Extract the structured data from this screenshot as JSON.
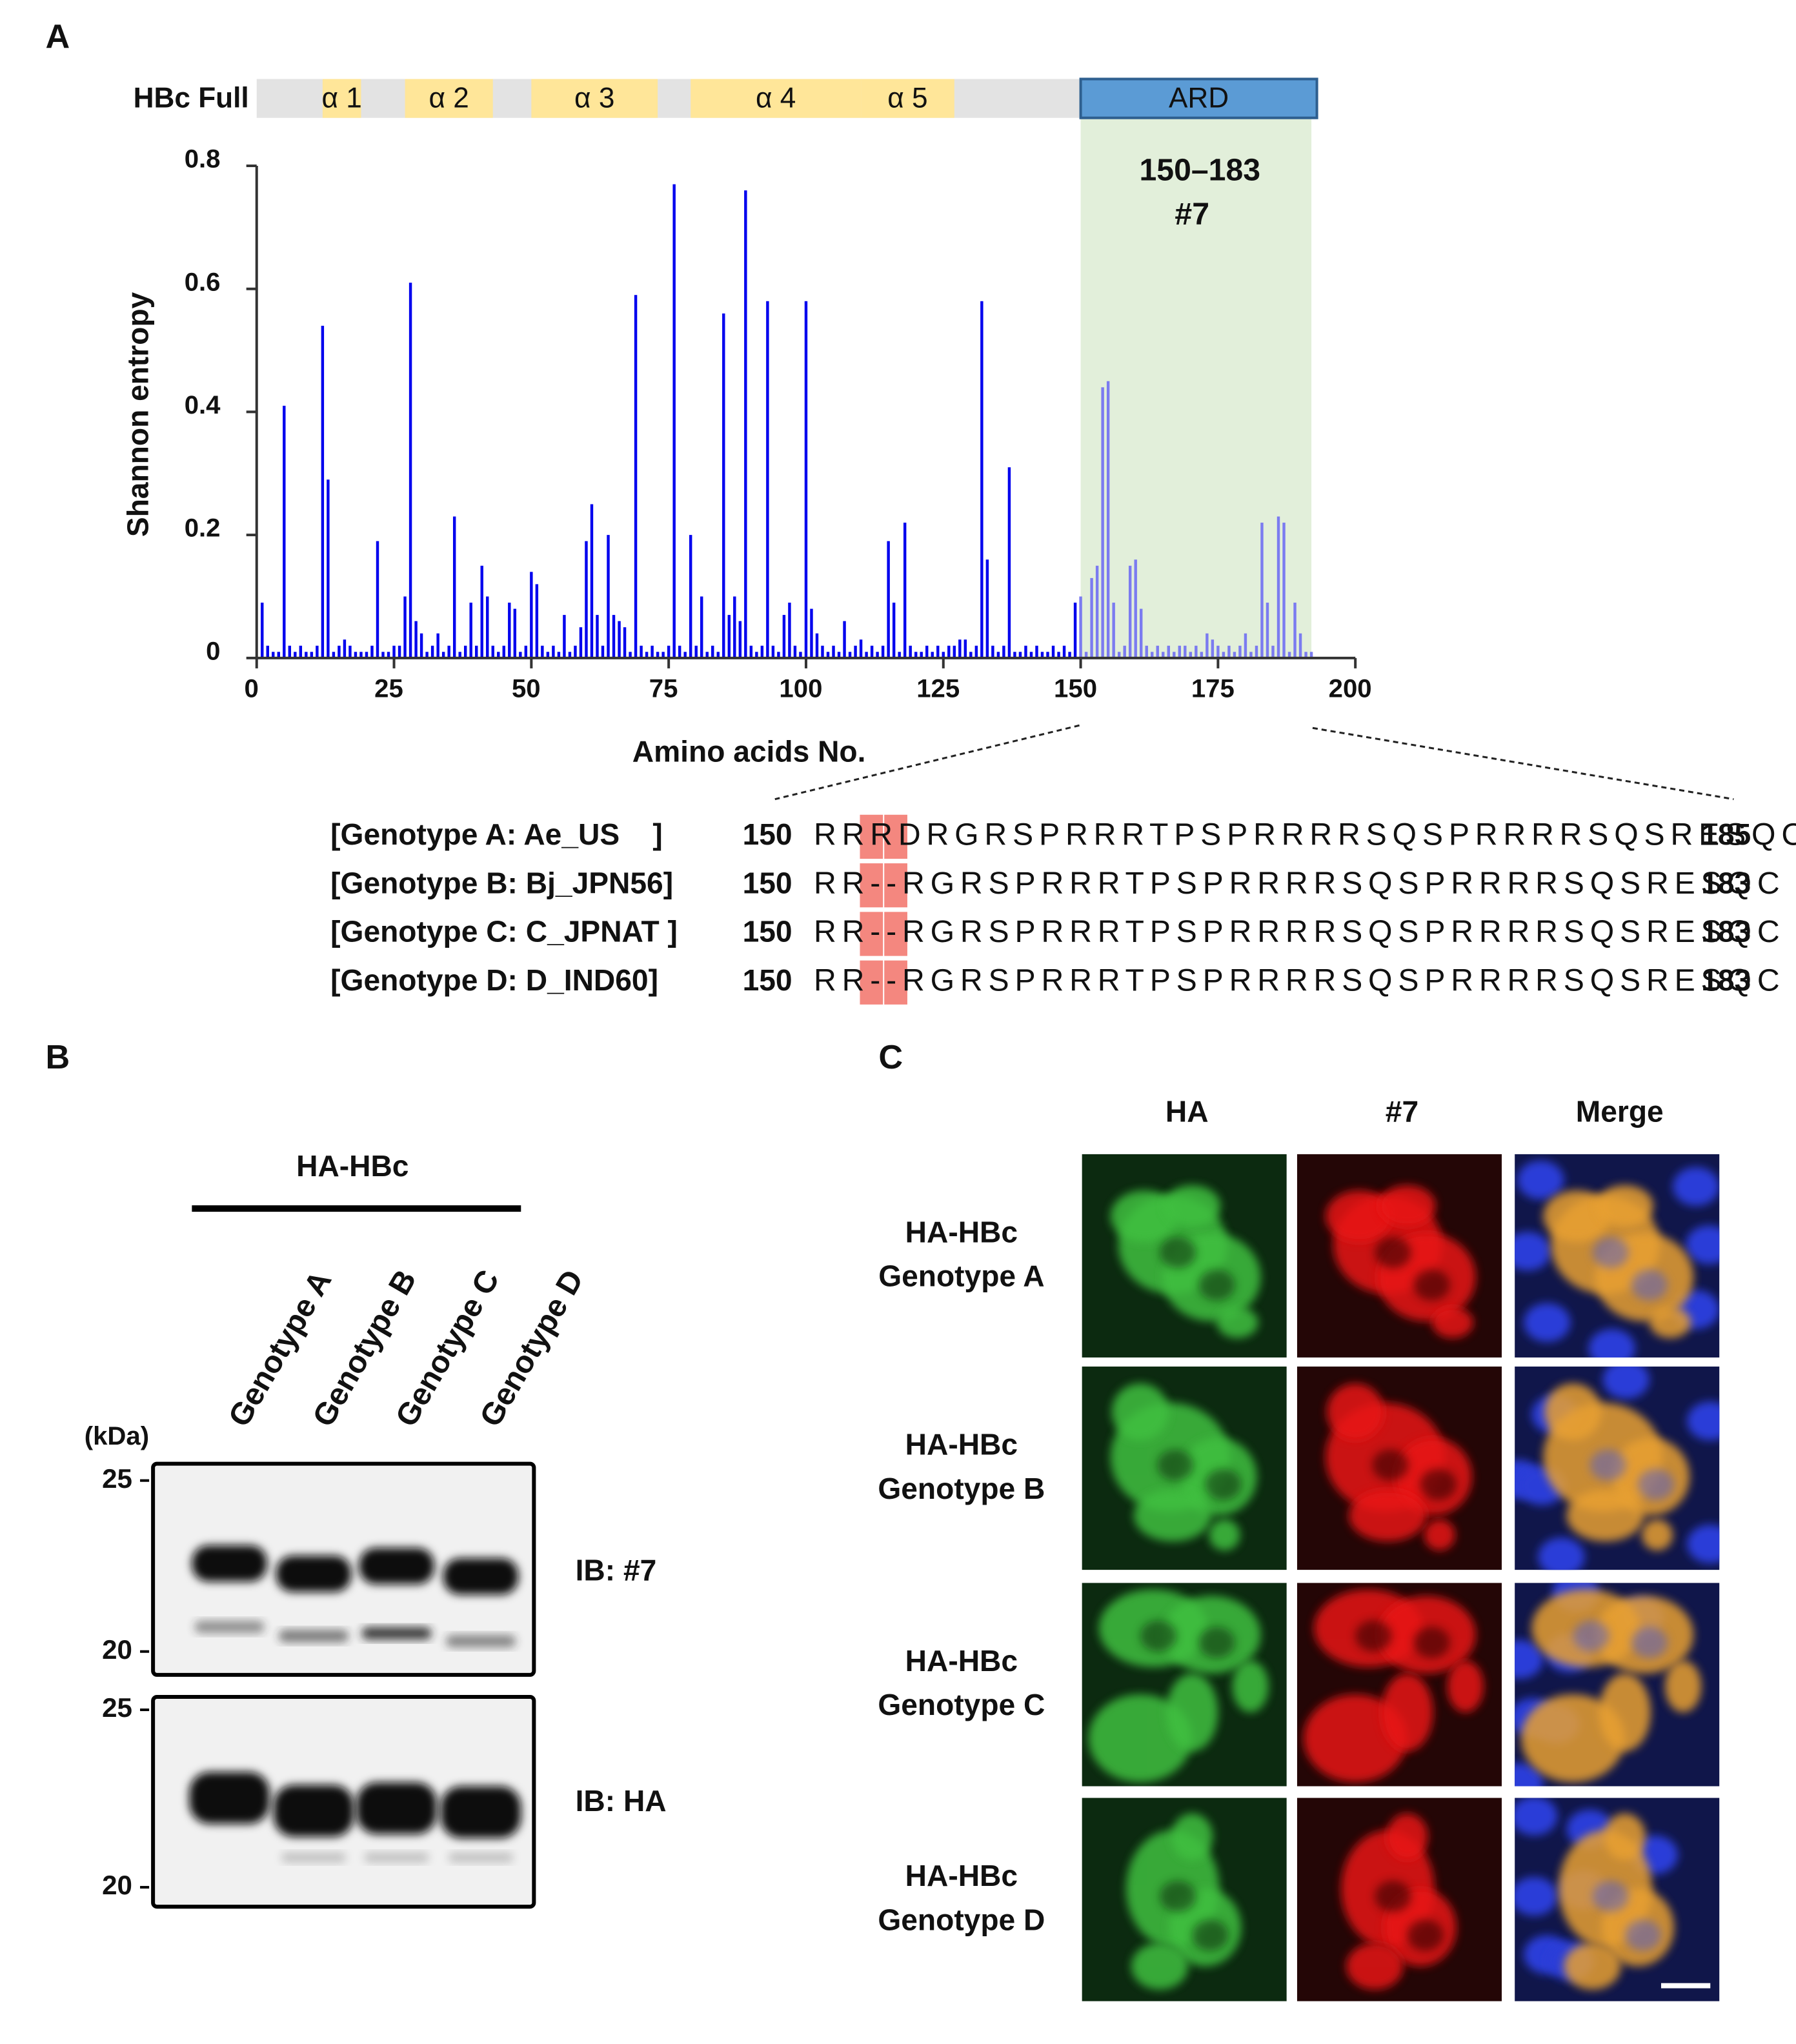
{
  "panels": {
    "a": "A",
    "b": "B",
    "c": "C"
  },
  "chart_data": {
    "type": "bar",
    "ylabel": "Shannon entropy",
    "xlabel": "Amino acids No.",
    "color": "#0000ee",
    "shade_bar_color": "#7b7bf0",
    "shade_color": "#e2efda",
    "shade_range": [
      150,
      192
    ],
    "annotation": [
      "150–183",
      "#7"
    ],
    "annotation_color": "#e00000",
    "xlim": [
      0,
      200
    ],
    "xticks": [
      0,
      25,
      50,
      75,
      100,
      125,
      150,
      175,
      200
    ],
    "ylim": [
      0,
      0.8
    ],
    "yticks": [
      0,
      0.2,
      0.4,
      0.6,
      0.8
    ],
    "x": [
      1,
      2,
      3,
      4,
      5,
      6,
      7,
      8,
      9,
      10,
      11,
      12,
      13,
      14,
      15,
      16,
      17,
      18,
      19,
      20,
      21,
      22,
      23,
      24,
      25,
      26,
      27,
      28,
      29,
      30,
      31,
      32,
      33,
      34,
      35,
      36,
      37,
      38,
      39,
      40,
      41,
      42,
      43,
      44,
      45,
      46,
      47,
      48,
      49,
      50,
      51,
      52,
      53,
      54,
      55,
      56,
      57,
      58,
      59,
      60,
      61,
      62,
      63,
      64,
      65,
      66,
      67,
      68,
      69,
      70,
      71,
      72,
      73,
      74,
      75,
      76,
      77,
      78,
      79,
      80,
      81,
      82,
      83,
      84,
      85,
      86,
      87,
      88,
      89,
      90,
      91,
      92,
      93,
      94,
      95,
      96,
      97,
      98,
      99,
      100,
      101,
      102,
      103,
      104,
      105,
      106,
      107,
      108,
      109,
      110,
      111,
      112,
      113,
      114,
      115,
      116,
      117,
      118,
      119,
      120,
      121,
      122,
      123,
      124,
      125,
      126,
      127,
      128,
      129,
      130,
      131,
      132,
      133,
      134,
      135,
      136,
      137,
      138,
      139,
      140,
      141,
      142,
      143,
      144,
      145,
      146,
      147,
      148,
      149,
      150,
      151,
      152,
      153,
      154,
      155,
      156,
      157,
      158,
      159,
      160,
      161,
      162,
      163,
      164,
      165,
      166,
      167,
      168,
      169,
      170,
      171,
      172,
      173,
      174,
      175,
      176,
      177,
      178,
      179,
      180,
      181,
      182,
      183,
      184,
      185,
      186,
      187,
      188,
      189,
      190,
      191,
      192
    ],
    "values": [
      0.09,
      0.02,
      0.01,
      0.01,
      0.41,
      0.02,
      0.01,
      0.02,
      0.01,
      0.01,
      0.02,
      0.54,
      0.29,
      0.01,
      0.02,
      0.03,
      0.02,
      0.01,
      0.01,
      0.01,
      0.02,
      0.19,
      0.01,
      0.01,
      0.02,
      0.02,
      0.1,
      0.61,
      0.06,
      0.04,
      0.01,
      0.02,
      0.04,
      0.01,
      0.02,
      0.23,
      0.01,
      0.02,
      0.09,
      0.02,
      0.15,
      0.1,
      0.02,
      0.01,
      0.02,
      0.09,
      0.08,
      0.01,
      0.02,
      0.14,
      0.12,
      0.02,
      0.01,
      0.02,
      0.01,
      0.07,
      0.01,
      0.02,
      0.05,
      0.19,
      0.25,
      0.07,
      0.02,
      0.2,
      0.07,
      0.06,
      0.05,
      0.01,
      0.59,
      0.02,
      0.01,
      0.02,
      0.01,
      0.01,
      0.02,
      0.77,
      0.02,
      0.01,
      0.2,
      0.02,
      0.1,
      0.01,
      0.02,
      0.01,
      0.56,
      0.07,
      0.1,
      0.06,
      0.76,
      0.02,
      0.01,
      0.02,
      0.58,
      0.02,
      0.01,
      0.07,
      0.09,
      0.02,
      0.01,
      0.58,
      0.08,
      0.04,
      0.02,
      0.01,
      0.02,
      0.01,
      0.06,
      0.01,
      0.02,
      0.03,
      0.01,
      0.02,
      0.01,
      0.02,
      0.19,
      0.09,
      0.01,
      0.22,
      0.02,
      0.01,
      0.01,
      0.02,
      0.01,
      0.02,
      0.01,
      0.02,
      0.02,
      0.03,
      0.03,
      0.01,
      0.02,
      0.58,
      0.16,
      0.02,
      0.01,
      0.02,
      0.31,
      0.01,
      0.01,
      0.02,
      0.01,
      0.02,
      0.01,
      0.01,
      0.02,
      0.01,
      0.02,
      0.01,
      0.09,
      0.1,
      0.01,
      0.13,
      0.15,
      0.44,
      0.45,
      0.09,
      0.01,
      0.02,
      0.15,
      0.16,
      0.08,
      0.02,
      0.01,
      0.02,
      0.01,
      0.02,
      0.01,
      0.02,
      0.02,
      0.01,
      0.02,
      0.01,
      0.04,
      0.03,
      0.02,
      0.01,
      0.02,
      0.01,
      0.02,
      0.04,
      0.01,
      0.02,
      0.22,
      0.09,
      0.02,
      0.23,
      0.22,
      0.01,
      0.09,
      0.04,
      0.01,
      0.01
    ],
    "domain_track": {
      "label": "HBc Full",
      "start": 0,
      "end": 150,
      "color": "#e3e3e3",
      "domains": [
        {
          "name": "α 1",
          "start": 12,
          "end": 19,
          "color": "#ffe699"
        },
        {
          "name": "α 2",
          "start": 27,
          "end": 43,
          "color": "#ffe699"
        },
        {
          "name": "α 3",
          "start": 50,
          "end": 73,
          "color": "#ffe699"
        },
        {
          "name": "α 4",
          "start": 79,
          "end": 110,
          "color": "#ffe699"
        },
        {
          "name": "α 5",
          "start": 110,
          "end": 127,
          "color": "#ffe699"
        },
        {
          "name": "ARD",
          "start": 150,
          "end": 193,
          "color": "#5b9bd5"
        }
      ]
    }
  },
  "alignment": {
    "highlight": [
      2,
      3
    ],
    "highlight_color": "#f4877f",
    "rows": [
      {
        "label": "[Genotype A: Ae_US    ]",
        "start": 150,
        "sequence": "RRRDRGRSPRRRTPSPRRRRSQSPRRRRSQSRESQC",
        "end": 185
      },
      {
        "label": "[Genotype B: Bj_JPN56]",
        "start": 150,
        "sequence": "RR--RGRSPRRRTPSPRRRRSQSPRRRRSQSRESQC",
        "end": 183
      },
      {
        "label": "[Genotype C: C_JPNAT ]",
        "start": 150,
        "sequence": "RR--RGRSPRRRTPSPRRRRSQSPRRRRSQSRESQC",
        "end": 183
      },
      {
        "label": "[Genotype D: D_IND60]",
        "start": 150,
        "sequence": "RR--RGRSPRRRTPSPRRRRSQSPRRRRSQSRESQC",
        "end": 183
      }
    ]
  },
  "blot": {
    "group": "HA-HBc",
    "lanes": [
      "Genotype A",
      "Genotype B",
      "Genotype C",
      "Genotype D"
    ],
    "unit": "(kDa)",
    "markers": [
      25,
      20
    ],
    "panels": [
      "IB: #7",
      "IB: HA"
    ]
  },
  "microscopy": {
    "columns": [
      "HA",
      "#7",
      "Merge"
    ],
    "rows": [
      [
        "HA-HBc",
        "Genotype A"
      ],
      [
        "HA-HBc",
        "Genotype B"
      ],
      [
        "HA-HBc",
        "Genotype C"
      ],
      [
        "HA-HBc",
        "Genotype D"
      ]
    ]
  }
}
